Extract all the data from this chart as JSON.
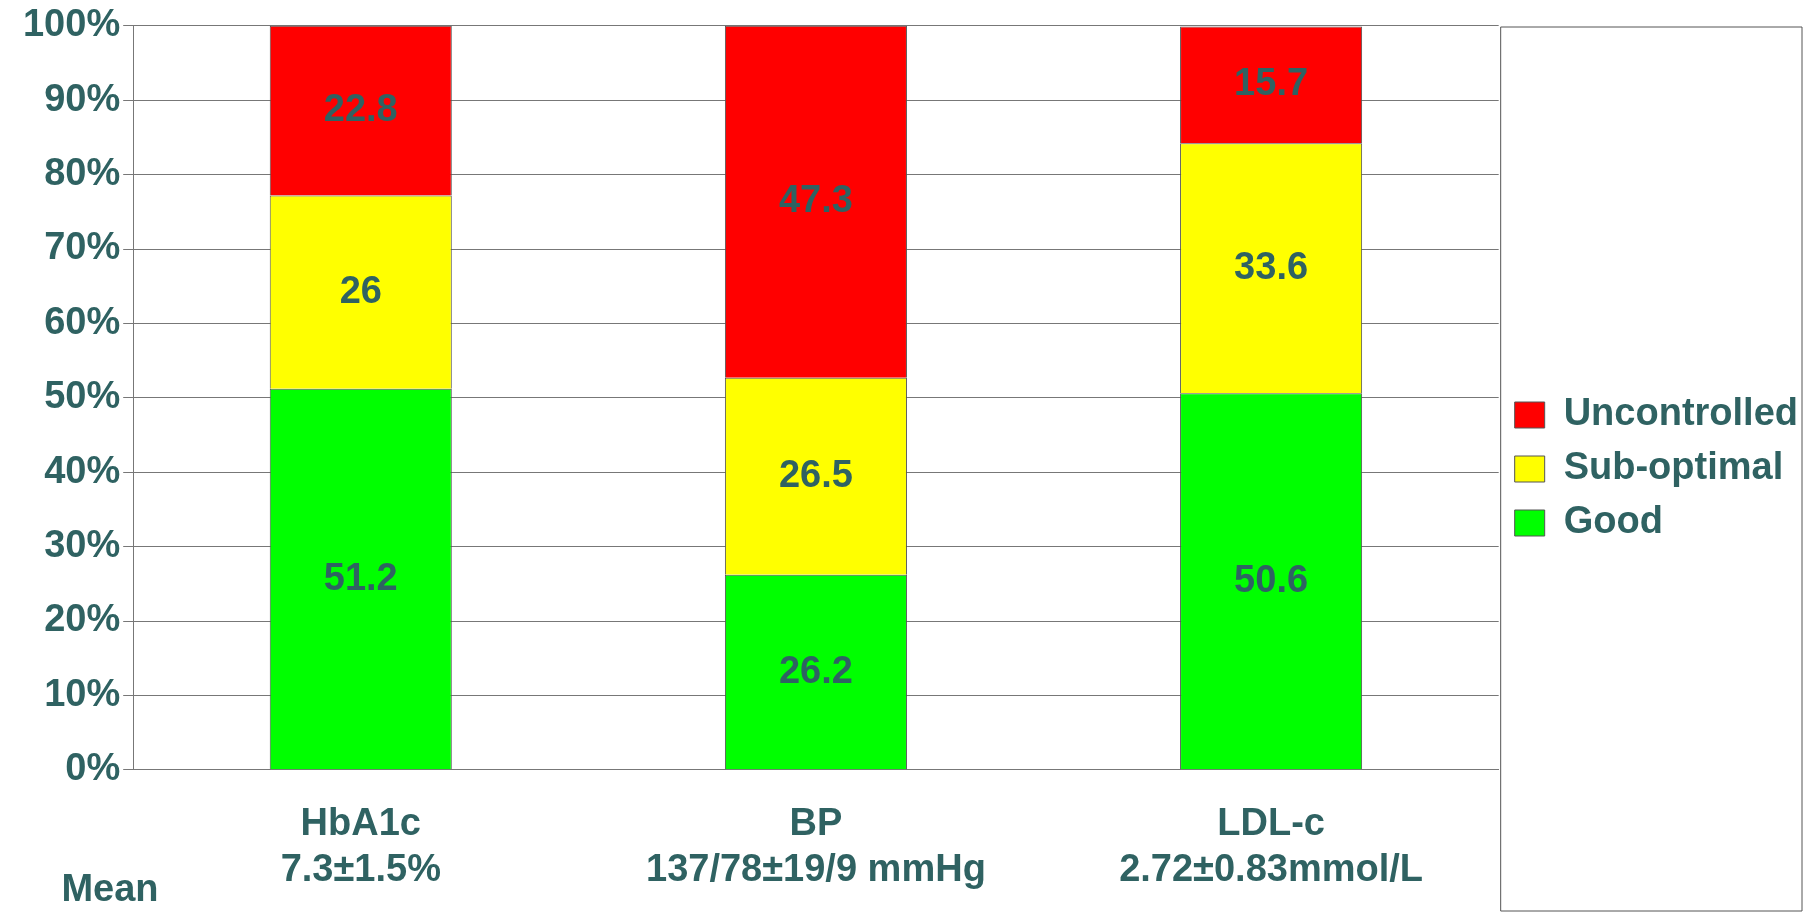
{
  "chart_data": {
    "type": "bar",
    "stacked": true,
    "categories": [
      "HbA1c\n7.3±1.5%",
      "BP\n137/78±19/9 mmHg",
      "LDL-c\n2.72±0.83mmol/L"
    ],
    "series": [
      {
        "name": "Good",
        "color": "#00ff00",
        "values": [
          51.2,
          26.2,
          50.6
        ]
      },
      {
        "name": "Sub-optimal",
        "color": "#ffff00",
        "values": [
          26,
          26.5,
          33.6
        ]
      },
      {
        "name": "Uncontrolled",
        "color": "#ff0000",
        "values": [
          22.8,
          47.3,
          15.7
        ]
      }
    ],
    "ylim": [
      0,
      100
    ],
    "yticks": [
      {
        "value": 0,
        "label": "0%"
      },
      {
        "value": 10,
        "label": "10%"
      },
      {
        "value": 20,
        "label": "20%"
      },
      {
        "value": 30,
        "label": "30%"
      },
      {
        "value": 40,
        "label": "40%"
      },
      {
        "value": 50,
        "label": "50%"
      },
      {
        "value": 60,
        "label": "60%"
      },
      {
        "value": 70,
        "label": "70%"
      },
      {
        "value": 80,
        "label": "80%"
      },
      {
        "value": 90,
        "label": "90%"
      },
      {
        "value": 100,
        "label": "100%"
      }
    ],
    "grid": "y",
    "legend": "right",
    "data_labels": true,
    "annotations": [
      "Mean"
    ]
  }
}
